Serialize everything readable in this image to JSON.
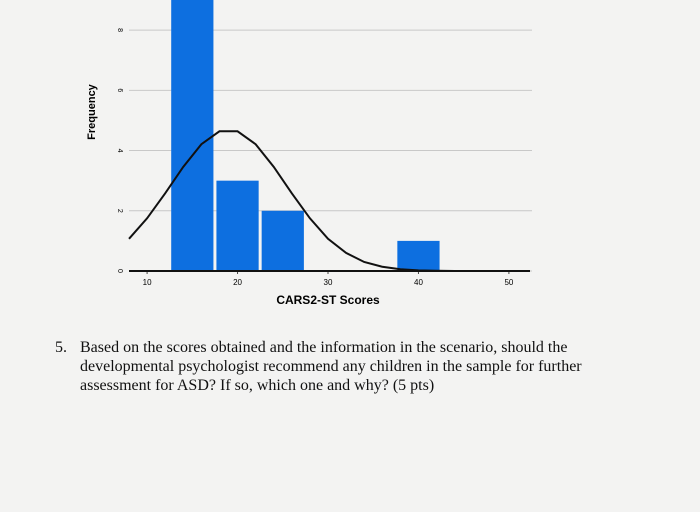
{
  "chart_data": {
    "type": "histogram",
    "bins": [
      12.5,
      17.5,
      22.5,
      27.5,
      32.5,
      37.5,
      42.5
    ],
    "values": [
      9,
      3,
      2,
      0,
      0,
      1
    ],
    "color": "#0d6fe0",
    "xlim": [
      8,
      52
    ],
    "xticks": [
      10,
      20,
      30,
      40,
      50
    ],
    "ylim": [
      0,
      9
    ],
    "yticks": [
      0,
      2,
      4,
      6,
      8
    ],
    "grid": true,
    "xlabel": "CARS2-ST Scores",
    "ylabel": "Frequency",
    "curve": {
      "color": "#111111",
      "x": [
        8,
        10,
        12,
        14,
        16,
        18,
        20,
        22,
        24,
        26,
        28,
        30,
        32,
        34,
        36,
        38,
        40,
        42,
        44,
        46,
        48,
        50,
        52
      ],
      "values": [
        1.07,
        1.75,
        2.58,
        3.46,
        4.21,
        4.64,
        4.64,
        4.21,
        3.46,
        2.58,
        1.75,
        1.07,
        0.6,
        0.3,
        0.14,
        0.06,
        0.02,
        0.01,
        0,
        0,
        0,
        0,
        0
      ]
    }
  },
  "question": {
    "number": "5.",
    "lines": [
      "Based on the scores obtained and the information in the scenario, should the",
      "developmental psychologist recommend any children in the sample for further",
      "assessment for ASD? If so, which one and why? (5 pts)"
    ]
  }
}
